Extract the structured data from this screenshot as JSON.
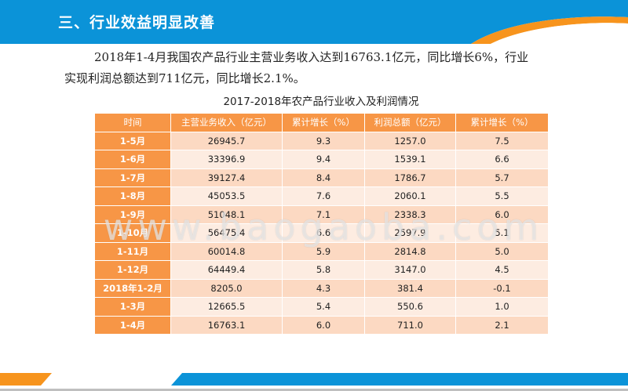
{
  "header": {
    "title": "三、行业效益明显改善",
    "colors": {
      "band": "#0b93d8",
      "accent": "#f7941d",
      "band_dark": "#0a6db0"
    }
  },
  "paragraph": {
    "line1": "2018年1-4月我国农产品行业主营业务收入达到16763.1亿元，同比增长6%，行业",
    "line2": "实现利润总额达到711亿元，同比增长2.1%。"
  },
  "table": {
    "caption": "2017-2018年农产品行业收入及利润情况",
    "headers": [
      "时间",
      "主营业务收入（亿元）",
      "累计增长（%）",
      "利润总额（亿元）",
      "累计增长（%）"
    ],
    "rows": [
      [
        "1-5月",
        "26945.7",
        "9.3",
        "1257.0",
        "7.5"
      ],
      [
        "1-6月",
        "33396.9",
        "9.4",
        "1539.1",
        "6.6"
      ],
      [
        "1-7月",
        "39127.4",
        "8.4",
        "1786.7",
        "5.7"
      ],
      [
        "1-8月",
        "45053.5",
        "7.6",
        "2060.1",
        "5.5"
      ],
      [
        "1-9月",
        "51048.1",
        "7.1",
        "2338.3",
        "6.0"
      ],
      [
        "1-10月",
        "56475.4",
        "6.6",
        "2597.9",
        "5.1"
      ],
      [
        "1-11月",
        "60014.8",
        "5.9",
        "2814.8",
        "5.0"
      ],
      [
        "1-12月",
        "64449.4",
        "5.8",
        "3147.0",
        "4.5"
      ],
      [
        "2018年1-2月",
        "8205.0",
        "4.3",
        "381.4",
        "-0.1"
      ],
      [
        "1-3月",
        "12665.5",
        "5.4",
        "550.6",
        "1.0"
      ],
      [
        "1-4月",
        "16763.1",
        "6.0",
        "711.0",
        "2.1"
      ]
    ]
  },
  "watermark": "www.baogaoba.com"
}
